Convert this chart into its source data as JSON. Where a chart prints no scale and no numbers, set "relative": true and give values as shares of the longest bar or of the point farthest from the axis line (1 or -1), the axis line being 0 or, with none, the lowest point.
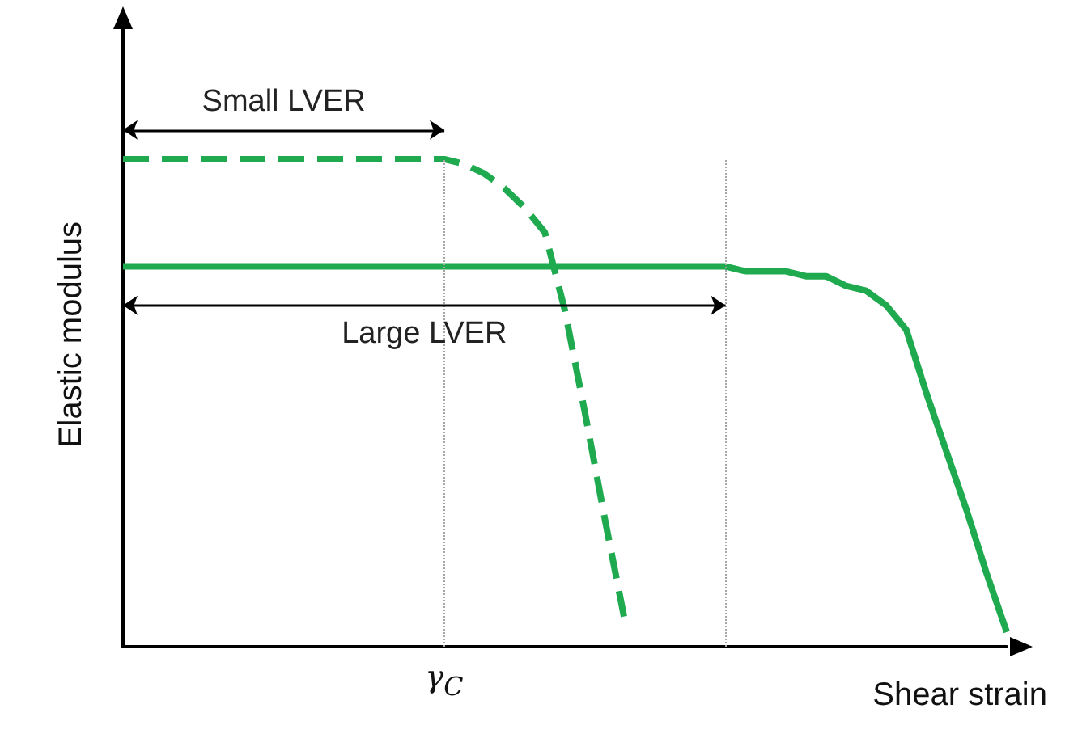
{
  "chart_data": {
    "type": "line",
    "relative": true,
    "xlabel": "Shear strain",
    "ylabel": "Elastic modulus",
    "categories": [
      null,
      null,
      null,
      null,
      null,
      null,
      null,
      null,
      null,
      null,
      null,
      null,
      null,
      null,
      null,
      null,
      null,
      null,
      null,
      null,
      null,
      null,
      null,
      null,
      null,
      null,
      null,
      null,
      null,
      null,
      null,
      null,
      null,
      null,
      null,
      null,
      null,
      null,
      null,
      null,
      null,
      null,
      null,
      null,
      null
    ],
    "series": [
      {
        "color": "#1faa4f",
        "line_style": "dashed",
        "values": [
          1,
          1,
          1,
          1,
          1,
          1,
          1,
          1,
          1,
          1,
          1,
          1,
          1,
          1,
          1,
          1,
          1,
          0.99,
          0.97,
          0.94,
          0.9,
          0.85,
          0.69,
          0.48,
          0.26,
          0.05,
          null,
          null,
          null,
          null,
          null,
          null,
          null,
          null,
          null,
          null,
          null,
          null,
          null,
          null,
          null,
          null,
          null,
          null,
          null
        ]
      },
      {
        "color": "#1faa4f",
        "line_style": "solid",
        "values": [
          0.78,
          0.78,
          0.78,
          0.78,
          0.78,
          0.78,
          0.78,
          0.78,
          0.78,
          0.78,
          0.78,
          0.78,
          0.78,
          0.78,
          0.78,
          0.78,
          0.78,
          0.78,
          0.78,
          0.78,
          0.78,
          0.78,
          0.78,
          0.78,
          0.78,
          0.78,
          0.78,
          0.78,
          0.78,
          0.78,
          0.78,
          0.77,
          0.77,
          0.77,
          0.76,
          0.76,
          0.74,
          0.73,
          0.7,
          0.65,
          0.52,
          0.4,
          0.28,
          0.15,
          0.03
        ]
      }
    ],
    "ref_lines": [
      {
        "axis": "x",
        "label": "γ$_{C}$",
        "color": "#a6a6a6",
        "line_style": "dotted"
      },
      {
        "axis": "x",
        "color": "#a6a6a6",
        "line_style": "dotted"
      }
    ],
    "annotations": [
      "Small LVER",
      "Large LVER"
    ],
    "marker": "none",
    "grid": false
  }
}
